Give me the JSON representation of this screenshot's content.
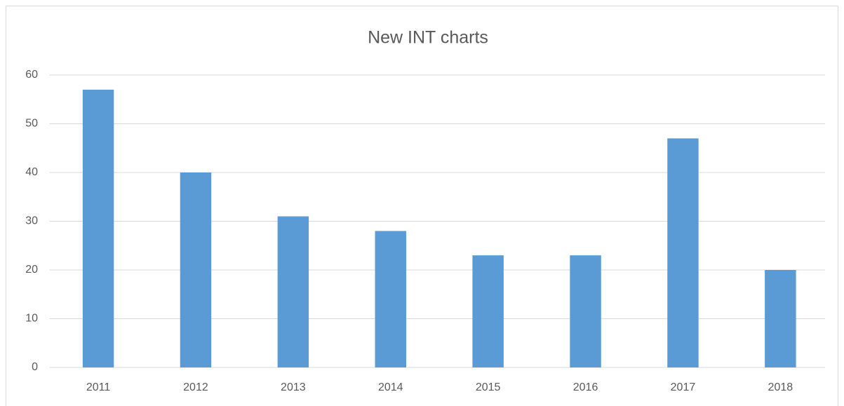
{
  "chart_data": {
    "type": "bar",
    "title": "New INT charts",
    "categories": [
      "2011",
      "2012",
      "2013",
      "2014",
      "2015",
      "2016",
      "2017",
      "2018"
    ],
    "values": [
      57,
      40,
      31,
      28,
      23,
      23,
      47,
      20
    ],
    "color": "#5b9bd5",
    "ylim": [
      0,
      60
    ],
    "yticks": [
      0,
      10,
      20,
      30,
      40,
      50,
      60
    ],
    "grid": true
  }
}
